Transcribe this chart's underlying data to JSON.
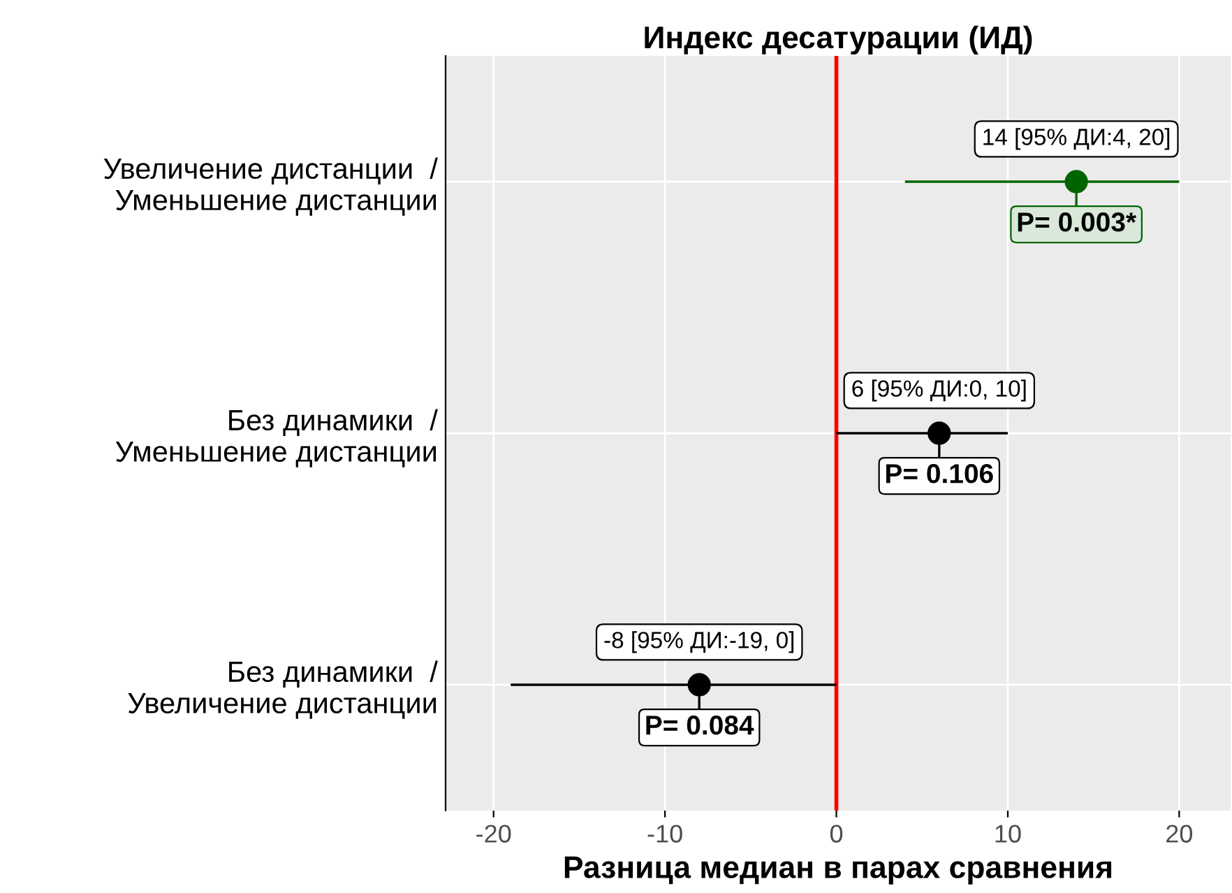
{
  "chart_data": {
    "type": "scatter",
    "orientation": "horizontal",
    "title": "Индекс десатурации (ИД)",
    "xlabel": "Разница медиан в парах сравнения",
    "categories": [
      "Увеличение дистанции  /\nУменьшение дистанции",
      "Без динамики  /\nУменьшение дистанции",
      "Без динамики  /\nУвеличение дистанции"
    ],
    "values": [
      14,
      6,
      -8
    ],
    "errors": [
      [
        4,
        20
      ],
      [
        0,
        10
      ],
      [
        -19,
        0
      ]
    ],
    "colors": [
      "#006400",
      "#000000",
      "#000000"
    ],
    "xlim": [
      -22.8,
      23
    ],
    "xticks": [
      -20,
      -10,
      0,
      10,
      20
    ],
    "ref_lines": [
      {
        "axis": "x",
        "value": 0,
        "color": "#ff0000"
      }
    ],
    "grid": true,
    "marker": "circle",
    "annotations": [
      {
        "text": "14 [95% ДИ:4, 20]",
        "x": 14,
        "y": "Увеличение дистанции  /\nУменьшение дистанции"
      },
      {
        "text": "6 [95% ДИ:0, 10]",
        "x": 6,
        "y": "Без динамики  /\nУменьшение дистанции"
      },
      {
        "text": "-8 [95% ДИ:-19, 0]",
        "x": -8,
        "y": "Без динамики  /\nУвеличение дистанции"
      },
      {
        "text": "P= 0.003*",
        "x": 14,
        "y": "Увеличение дистанции  /\nУменьшение дистанции"
      },
      {
        "text": "P= 0.106",
        "x": 6,
        "y": "Без динамики  /\nУменьшение дистанции"
      },
      {
        "text": "P= 0.084",
        "x": -8,
        "y": "Без динамики  /\nУвеличение дистанции"
      }
    ]
  }
}
